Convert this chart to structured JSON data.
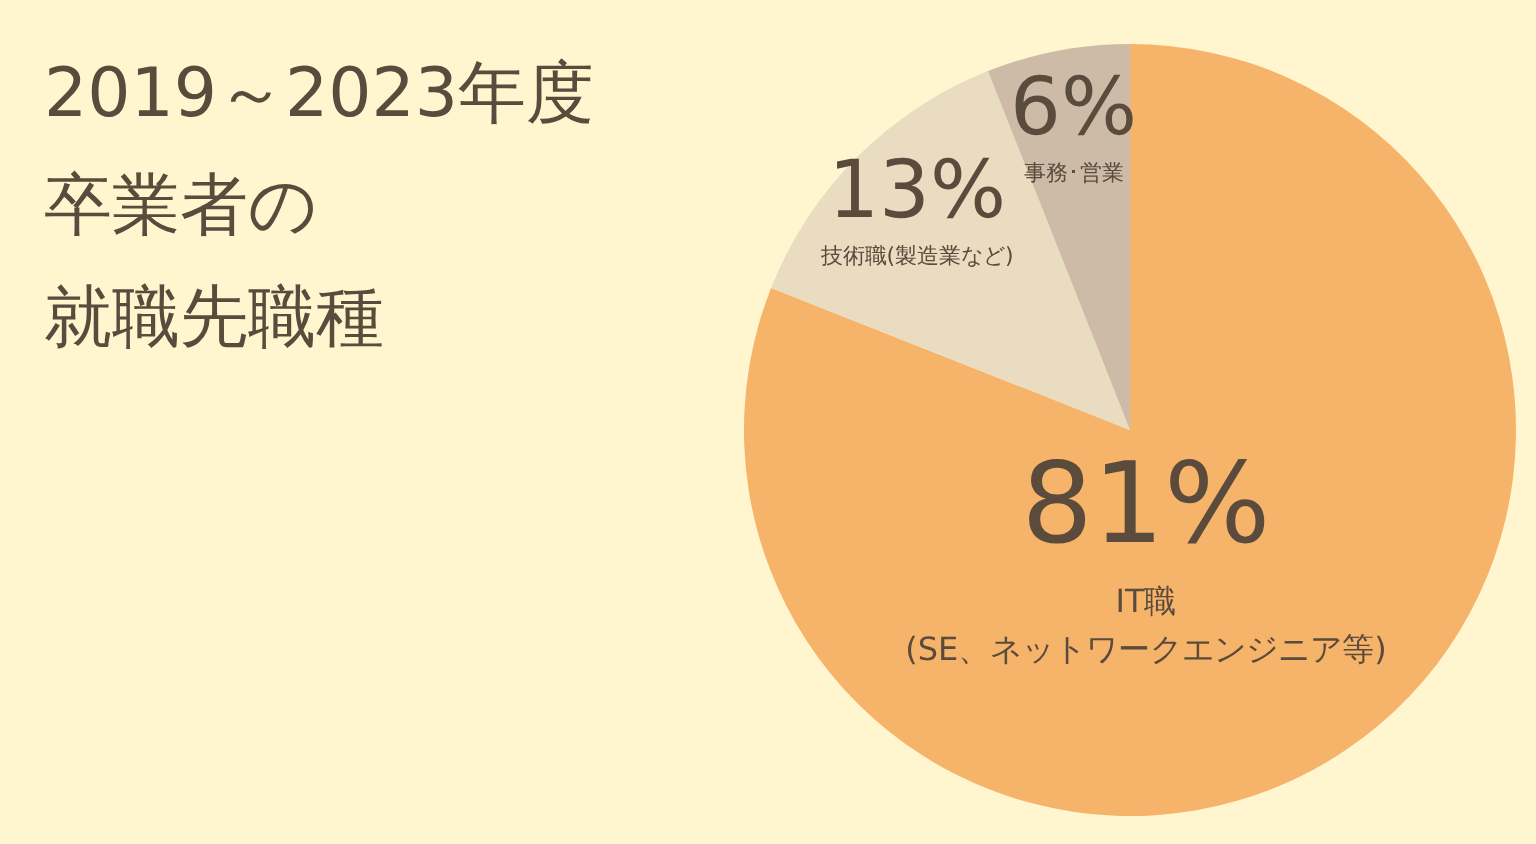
{
  "chart_data": {
    "type": "pie",
    "title": "2019～2023年度卒業者の就職先職種",
    "categories": [
      "IT職\n(SE、ネットワークエンジニア等)",
      "技術職(製造業など)",
      "事務･営業"
    ],
    "values": [
      81,
      13,
      6
    ],
    "value_labels": [
      "81%",
      "13%",
      "6%"
    ],
    "colors": [
      "#f5b469",
      "#e9dcc0",
      "#cdbba8"
    ]
  }
}
